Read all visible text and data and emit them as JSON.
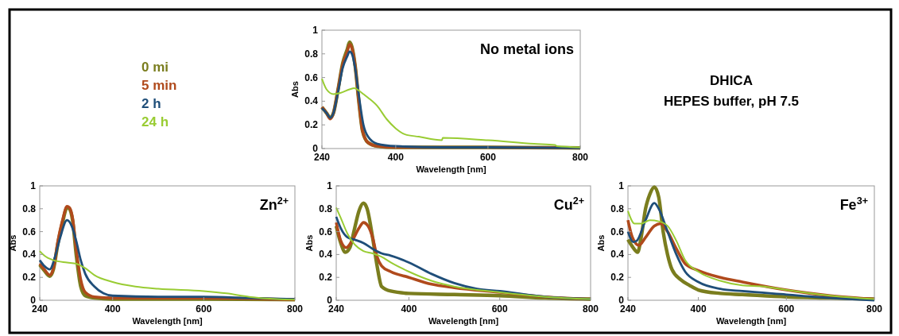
{
  "chart_data": [
    {
      "type": "line",
      "title": "No metal ions",
      "xlabel": "Wavelength [nm]",
      "ylabel": "Abs",
      "xlim": [
        240,
        800
      ],
      "ylim": [
        0,
        1
      ],
      "xticks": [
        240,
        400,
        600,
        800
      ],
      "yticks": [
        0,
        0.2,
        0.4,
        0.6,
        0.8,
        1
      ],
      "legend": "left",
      "grid": false,
      "annotations": [
        "DHICA",
        "HEPES buffer, pH 7.5"
      ],
      "series": [
        {
          "name": "0 mi",
          "color": "#7a7d1e",
          "x": [
            240,
            250,
            258,
            265,
            275,
            285,
            295,
            300,
            305,
            312,
            320,
            328,
            340,
            360,
            400,
            500,
            600,
            800
          ],
          "values": [
            0.35,
            0.3,
            0.26,
            0.3,
            0.5,
            0.72,
            0.84,
            0.9,
            0.86,
            0.7,
            0.4,
            0.15,
            0.05,
            0.02,
            0.01,
            0.01,
            0.01,
            0.005
          ]
        },
        {
          "name": "5 min",
          "color": "#b04a1c",
          "x": [
            240,
            250,
            258,
            265,
            275,
            285,
            295,
            300,
            305,
            312,
            320,
            328,
            340,
            360,
            400,
            500,
            600,
            800
          ],
          "values": [
            0.35,
            0.3,
            0.25,
            0.3,
            0.5,
            0.71,
            0.82,
            0.88,
            0.85,
            0.7,
            0.4,
            0.15,
            0.05,
            0.02,
            0.01,
            0.01,
            0.01,
            0.005
          ]
        },
        {
          "name": "2 h",
          "color": "#1f4e79",
          "x": [
            240,
            250,
            258,
            265,
            275,
            285,
            295,
            300,
            305,
            312,
            320,
            330,
            340,
            360,
            400,
            500,
            600,
            800
          ],
          "values": [
            0.34,
            0.3,
            0.26,
            0.3,
            0.48,
            0.68,
            0.78,
            0.82,
            0.8,
            0.68,
            0.45,
            0.2,
            0.1,
            0.04,
            0.02,
            0.01,
            0.01,
            0.005
          ]
        },
        {
          "name": "24 h",
          "color": "#99cc33",
          "x": [
            240,
            250,
            265,
            280,
            300,
            310,
            320,
            330,
            340,
            360,
            380,
            400,
            420,
            450,
            500,
            502,
            600,
            700,
            745,
            750,
            800
          ],
          "values": [
            0.59,
            0.5,
            0.46,
            0.47,
            0.5,
            0.51,
            0.49,
            0.46,
            0.43,
            0.36,
            0.25,
            0.17,
            0.12,
            0.1,
            0.07,
            0.09,
            0.07,
            0.04,
            0.03,
            0.02,
            0.01
          ]
        }
      ]
    },
    {
      "type": "line",
      "title": "Zn$^{2+}$",
      "xlabel": "Wavelength [nm]",
      "ylabel": "Abs",
      "xlim": [
        240,
        800
      ],
      "ylim": [
        0,
        1
      ],
      "xticks": [
        240,
        400,
        600,
        800
      ],
      "yticks": [
        0,
        0.2,
        0.4,
        0.6,
        0.8,
        1
      ],
      "grid": false,
      "series": [
        {
          "color": "#7a7d1e",
          "x": [
            240,
            250,
            262,
            270,
            280,
            290,
            300,
            305,
            312,
            320,
            330,
            340,
            360,
            400,
            600,
            800
          ],
          "values": [
            0.31,
            0.26,
            0.21,
            0.27,
            0.5,
            0.68,
            0.81,
            0.8,
            0.7,
            0.4,
            0.12,
            0.04,
            0.02,
            0.01,
            0.01,
            0.005
          ]
        },
        {
          "color": "#b04a1c",
          "x": [
            240,
            250,
            262,
            270,
            280,
            290,
            300,
            305,
            312,
            320,
            330,
            340,
            360,
            400,
            600,
            800
          ],
          "values": [
            0.32,
            0.27,
            0.22,
            0.28,
            0.52,
            0.7,
            0.82,
            0.81,
            0.72,
            0.45,
            0.18,
            0.07,
            0.03,
            0.02,
            0.02,
            0.005
          ]
        },
        {
          "color": "#1f4e79",
          "x": [
            240,
            250,
            262,
            275,
            285,
            300,
            310,
            320,
            330,
            340,
            360,
            380,
            400,
            500,
            600,
            700,
            800
          ],
          "values": [
            0.35,
            0.3,
            0.27,
            0.4,
            0.55,
            0.7,
            0.65,
            0.52,
            0.35,
            0.23,
            0.12,
            0.06,
            0.04,
            0.03,
            0.03,
            0.02,
            0.01
          ]
        },
        {
          "color": "#99cc33",
          "x": [
            240,
            250,
            270,
            300,
            320,
            340,
            360,
            400,
            450,
            500,
            600,
            650,
            700,
            760,
            800
          ],
          "values": [
            0.43,
            0.39,
            0.35,
            0.33,
            0.32,
            0.28,
            0.22,
            0.16,
            0.12,
            0.1,
            0.08,
            0.06,
            0.03,
            0.01,
            0.005
          ]
        }
      ]
    },
    {
      "type": "line",
      "title": "Cu$^{2+}$",
      "xlabel": "Wavelength [nm]",
      "ylabel": "Abs",
      "xlim": [
        240,
        800
      ],
      "ylim": [
        0,
        1
      ],
      "xticks": [
        240,
        400,
        600,
        800
      ],
      "yticks": [
        0,
        0.2,
        0.4,
        0.6,
        0.8,
        1
      ],
      "grid": false,
      "series": [
        {
          "color": "#7a7d1e",
          "x": [
            240,
            250,
            260,
            270,
            280,
            290,
            300,
            308,
            320,
            330,
            340,
            360,
            400,
            500,
            600,
            700,
            800
          ],
          "values": [
            0.65,
            0.5,
            0.42,
            0.46,
            0.62,
            0.78,
            0.85,
            0.8,
            0.55,
            0.3,
            0.12,
            0.08,
            0.06,
            0.05,
            0.04,
            0.02,
            0.01
          ]
        },
        {
          "color": "#b04a1c",
          "x": [
            240,
            250,
            262,
            275,
            290,
            300,
            310,
            320,
            330,
            340,
            360,
            400,
            450,
            500,
            600,
            700,
            800
          ],
          "values": [
            0.68,
            0.52,
            0.46,
            0.52,
            0.63,
            0.68,
            0.65,
            0.55,
            0.38,
            0.3,
            0.25,
            0.2,
            0.14,
            0.11,
            0.07,
            0.03,
            0.01
          ]
        },
        {
          "color": "#1f4e79",
          "x": [
            240,
            250,
            265,
            280,
            300,
            320,
            340,
            360,
            400,
            450,
            500,
            550,
            600,
            700,
            800
          ],
          "values": [
            0.73,
            0.63,
            0.55,
            0.53,
            0.5,
            0.45,
            0.41,
            0.39,
            0.33,
            0.23,
            0.15,
            0.1,
            0.08,
            0.03,
            0.01
          ]
        },
        {
          "color": "#99cc33",
          "x": [
            240,
            250,
            265,
            280,
            300,
            320,
            340,
            360,
            400,
            450,
            500,
            600,
            700,
            800
          ],
          "values": [
            0.81,
            0.72,
            0.58,
            0.49,
            0.43,
            0.41,
            0.38,
            0.33,
            0.25,
            0.17,
            0.12,
            0.07,
            0.03,
            0.01
          ]
        }
      ]
    },
    {
      "type": "line",
      "title": "Fe$^{3+}$",
      "xlabel": "Wavelength [nm]",
      "ylabel": "Abs",
      "xlim": [
        240,
        800
      ],
      "ylim": [
        0,
        1
      ],
      "xticks": [
        240,
        400,
        600,
        800
      ],
      "yticks": [
        0,
        0.2,
        0.4,
        0.6,
        0.8,
        1
      ],
      "grid": false,
      "series": [
        {
          "color": "#7a7d1e",
          "x": [
            240,
            250,
            262,
            270,
            280,
            290,
            300,
            310,
            320,
            330,
            340,
            360,
            380,
            400,
            450,
            500,
            600,
            700,
            800
          ],
          "values": [
            0.53,
            0.47,
            0.42,
            0.55,
            0.8,
            0.93,
            0.99,
            0.9,
            0.6,
            0.4,
            0.27,
            0.18,
            0.13,
            0.09,
            0.06,
            0.05,
            0.03,
            0.02,
            0.01
          ]
        },
        {
          "color": "#b04a1c",
          "x": [
            240,
            250,
            265,
            280,
            300,
            315,
            330,
            350,
            370,
            400,
            450,
            500,
            600,
            700,
            800
          ],
          "values": [
            0.7,
            0.55,
            0.48,
            0.55,
            0.65,
            0.67,
            0.6,
            0.45,
            0.32,
            0.26,
            0.2,
            0.16,
            0.09,
            0.04,
            0.01
          ]
        },
        {
          "color": "#1f4e79",
          "x": [
            240,
            252,
            260,
            280,
            300,
            310,
            330,
            350,
            370,
            400,
            450,
            500,
            600,
            700,
            750,
            800
          ],
          "values": [
            0.6,
            0.51,
            0.52,
            0.7,
            0.85,
            0.8,
            0.6,
            0.4,
            0.25,
            0.16,
            0.1,
            0.08,
            0.05,
            0.02,
            0.01,
            0
          ]
        },
        {
          "color": "#99cc33",
          "x": [
            240,
            255,
            270,
            290,
            310,
            330,
            350,
            370,
            400,
            450,
            500,
            550,
            600,
            700,
            800
          ],
          "values": [
            0.78,
            0.67,
            0.67,
            0.7,
            0.69,
            0.65,
            0.52,
            0.35,
            0.25,
            0.17,
            0.13,
            0.12,
            0.09,
            0.04,
            0.01
          ]
        }
      ]
    }
  ]
}
